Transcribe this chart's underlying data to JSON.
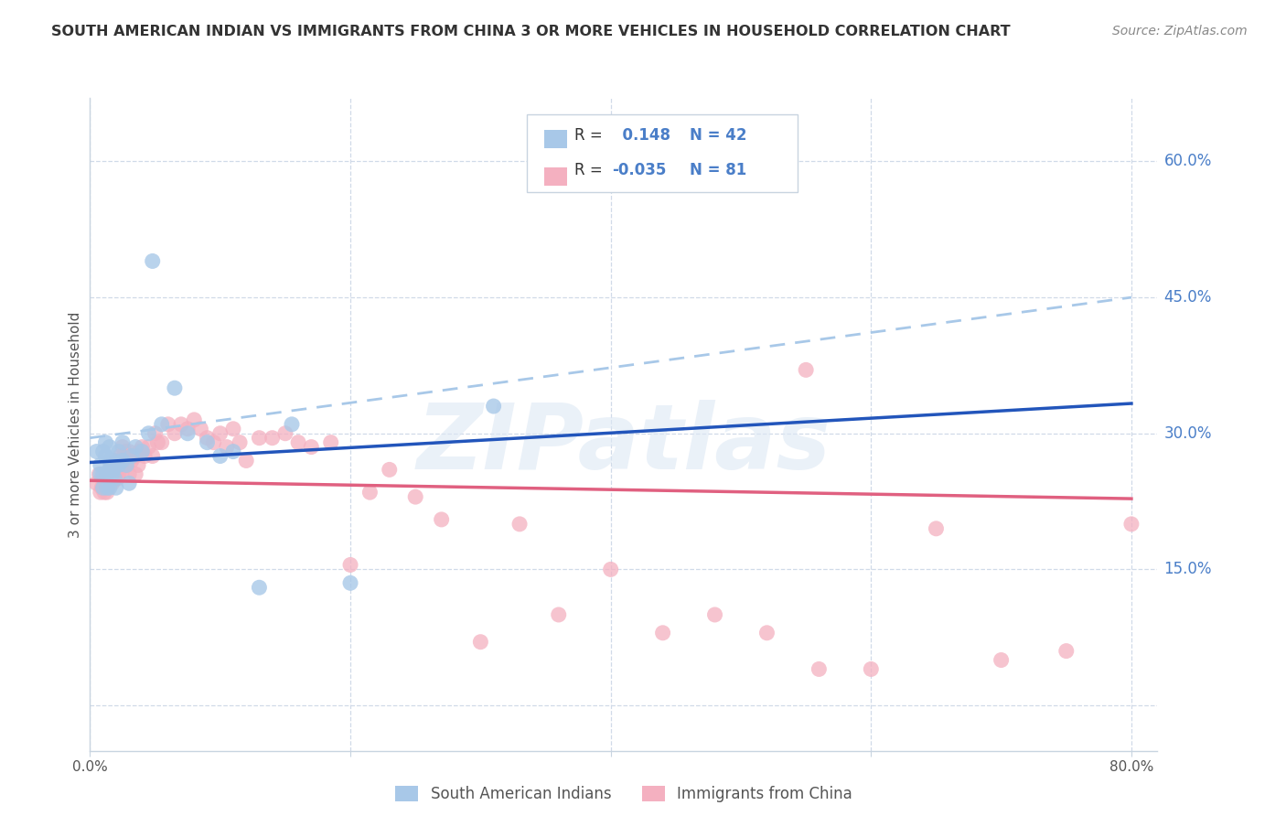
{
  "title": "SOUTH AMERICAN INDIAN VS IMMIGRANTS FROM CHINA 3 OR MORE VEHICLES IN HOUSEHOLD CORRELATION CHART",
  "source": "Source: ZipAtlas.com",
  "ylabel": "3 or more Vehicles in Household",
  "xlim": [
    0.0,
    0.82
  ],
  "ylim": [
    -0.05,
    0.67
  ],
  "plot_xlim": [
    0.0,
    0.8
  ],
  "ytick_vals": [
    0.0,
    0.15,
    0.3,
    0.45,
    0.6
  ],
  "ytick_labels": [
    "",
    "15.0%",
    "30.0%",
    "45.0%",
    "60.0%"
  ],
  "blue_R": 0.148,
  "blue_N": 42,
  "pink_R": -0.035,
  "pink_N": 81,
  "blue_color": "#a8c8e8",
  "pink_color": "#f4b0c0",
  "blue_line_color": "#2255bb",
  "pink_line_color": "#e06080",
  "dashed_line_color": "#a8c8e8",
  "grid_color": "#d0dae8",
  "right_label_color": "#4a7ec8",
  "title_color": "#333333",
  "source_color": "#888888",
  "legend_label1": "South American Indians",
  "legend_label2": "Immigrants from China",
  "blue_scatter_x": [
    0.005,
    0.008,
    0.008,
    0.01,
    0.01,
    0.01,
    0.012,
    0.012,
    0.013,
    0.013,
    0.015,
    0.015,
    0.015,
    0.015,
    0.016,
    0.017,
    0.018,
    0.018,
    0.019,
    0.02,
    0.02,
    0.022,
    0.022,
    0.025,
    0.025,
    0.028,
    0.03,
    0.032,
    0.035,
    0.04,
    0.045,
    0.048,
    0.055,
    0.065,
    0.075,
    0.09,
    0.1,
    0.11,
    0.13,
    0.155,
    0.2,
    0.31
  ],
  "blue_scatter_y": [
    0.28,
    0.265,
    0.255,
    0.28,
    0.255,
    0.24,
    0.29,
    0.275,
    0.255,
    0.24,
    0.285,
    0.27,
    0.26,
    0.24,
    0.26,
    0.255,
    0.27,
    0.26,
    0.25,
    0.265,
    0.24,
    0.28,
    0.265,
    0.29,
    0.27,
    0.265,
    0.245,
    0.275,
    0.285,
    0.28,
    0.3,
    0.49,
    0.31,
    0.35,
    0.3,
    0.29,
    0.275,
    0.28,
    0.13,
    0.31,
    0.135,
    0.33
  ],
  "pink_scatter_x": [
    0.005,
    0.007,
    0.008,
    0.009,
    0.01,
    0.01,
    0.011,
    0.012,
    0.012,
    0.013,
    0.014,
    0.015,
    0.015,
    0.016,
    0.017,
    0.018,
    0.019,
    0.02,
    0.02,
    0.021,
    0.022,
    0.022,
    0.023,
    0.025,
    0.025,
    0.026,
    0.027,
    0.028,
    0.03,
    0.03,
    0.032,
    0.033,
    0.035,
    0.035,
    0.037,
    0.038,
    0.04,
    0.042,
    0.045,
    0.048,
    0.05,
    0.052,
    0.055,
    0.06,
    0.065,
    0.07,
    0.075,
    0.08,
    0.085,
    0.09,
    0.095,
    0.1,
    0.105,
    0.11,
    0.115,
    0.12,
    0.13,
    0.14,
    0.15,
    0.16,
    0.17,
    0.185,
    0.2,
    0.215,
    0.23,
    0.25,
    0.27,
    0.3,
    0.33,
    0.36,
    0.4,
    0.44,
    0.48,
    0.52,
    0.56,
    0.6,
    0.65,
    0.7,
    0.75,
    0.8,
    0.55
  ],
  "pink_scatter_y": [
    0.245,
    0.255,
    0.235,
    0.24,
    0.25,
    0.24,
    0.235,
    0.255,
    0.24,
    0.235,
    0.25,
    0.26,
    0.245,
    0.255,
    0.245,
    0.26,
    0.25,
    0.27,
    0.255,
    0.25,
    0.27,
    0.255,
    0.275,
    0.285,
    0.26,
    0.27,
    0.28,
    0.265,
    0.28,
    0.255,
    0.27,
    0.275,
    0.275,
    0.255,
    0.265,
    0.28,
    0.285,
    0.275,
    0.285,
    0.275,
    0.3,
    0.29,
    0.29,
    0.31,
    0.3,
    0.31,
    0.305,
    0.315,
    0.305,
    0.295,
    0.29,
    0.3,
    0.285,
    0.305,
    0.29,
    0.27,
    0.295,
    0.295,
    0.3,
    0.29,
    0.285,
    0.29,
    0.155,
    0.235,
    0.26,
    0.23,
    0.205,
    0.07,
    0.2,
    0.1,
    0.15,
    0.08,
    0.1,
    0.08,
    0.04,
    0.04,
    0.195,
    0.05,
    0.06,
    0.2,
    0.37
  ],
  "blue_line_x0": 0.0,
  "blue_line_x1": 0.8,
  "blue_line_y0": 0.268,
  "blue_line_y1": 0.333,
  "dashed_line_x0": 0.0,
  "dashed_line_x1": 0.8,
  "dashed_line_y0": 0.295,
  "dashed_line_y1": 0.45,
  "pink_line_x0": 0.0,
  "pink_line_x1": 0.8,
  "pink_line_y0": 0.248,
  "pink_line_y1": 0.228
}
